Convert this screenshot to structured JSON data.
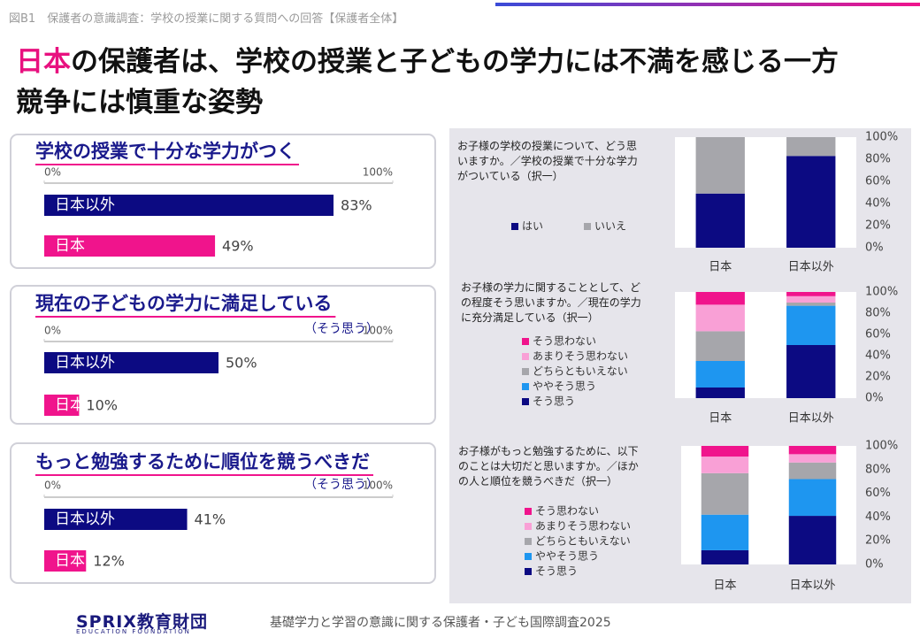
{
  "header": {
    "caption": "図B1　保護者の意識調査：学校の授業に関する質問への回答【保護者全体】",
    "title_highlight": "日本",
    "title_rest": "の保護者は、学校の授業と子どもの学力には不満を感じる一方",
    "title_line2": "競争には慎重な姿勢"
  },
  "chart_data": [
    {
      "type": "bar",
      "orientation": "horizontal",
      "title": "学校の授業で十分な学力がつく",
      "categories": [
        "日本以外",
        "日本"
      ],
      "values": [
        83,
        49
      ],
      "value_labels": [
        "83%",
        "49%"
      ],
      "colors": [
        "#0c0a82",
        "#f0148c"
      ],
      "xlim": [
        0,
        100
      ],
      "xticks": [
        {
          "value": 0,
          "label": "0%"
        },
        {
          "value": 100,
          "label": "100%"
        }
      ]
    },
    {
      "type": "bar",
      "orientation": "horizontal",
      "title": "現在の子どもの学力に満足している",
      "subtitle": "（そう思う）",
      "categories": [
        "日本以外",
        "日本"
      ],
      "values": [
        50,
        10
      ],
      "value_labels": [
        "50%",
        "10%"
      ],
      "colors": [
        "#0c0a82",
        "#f0148c"
      ],
      "xlim": [
        0,
        100
      ],
      "xticks": [
        {
          "value": 0,
          "label": "0%"
        },
        {
          "value": 100,
          "label": "100%"
        }
      ]
    },
    {
      "type": "bar",
      "orientation": "horizontal",
      "title": "もっと勉強するために順位を競うべきだ",
      "subtitle": "（そう思う）",
      "categories": [
        "日本以外",
        "日本"
      ],
      "values": [
        41,
        12
      ],
      "value_labels": [
        "41%",
        "12%"
      ],
      "colors": [
        "#0c0a82",
        "#f0148c"
      ],
      "xlim": [
        0,
        100
      ],
      "xticks": [
        {
          "value": 0,
          "label": "0%"
        },
        {
          "value": 100,
          "label": "100%"
        }
      ]
    },
    {
      "type": "stacked_bar",
      "title": "お子様の学校の授業について、どう思いますか。／学校の授業で十分な学力がついている（択一）",
      "categories": [
        "日本",
        "日本以外"
      ],
      "legend": "row",
      "series": [
        {
          "name": "はい",
          "color": "#0c0a82",
          "values": [
            49,
            83
          ]
        },
        {
          "name": "いいえ",
          "color": "#a6a6ab",
          "values": [
            51,
            17
          ]
        }
      ],
      "ylim": [
        0,
        100
      ],
      "yticks": [
        {
          "value": 0,
          "label": "0%"
        },
        {
          "value": 20,
          "label": "20%"
        },
        {
          "value": 40,
          "label": "40%"
        },
        {
          "value": 60,
          "label": "60%"
        },
        {
          "value": 80,
          "label": "80%"
        },
        {
          "value": 100,
          "label": "100%"
        }
      ]
    },
    {
      "type": "stacked_bar",
      "title": "お子様の学力に関することとして、どの程度そう思いますか。／現在の学力に充分満足している（択一）",
      "categories": [
        "日本",
        "日本以外"
      ],
      "legend": "column",
      "series": [
        {
          "name": "そう思う",
          "color": "#0c0a82",
          "values": [
            10,
            50
          ]
        },
        {
          "name": "ややそう思う",
          "color": "#1e96f0",
          "values": [
            25,
            37
          ]
        },
        {
          "name": "どちらともいえない",
          "color": "#a6a6ab",
          "values": [
            28,
            3
          ]
        },
        {
          "name": "あまりそう思わない",
          "color": "#f9a0d6",
          "values": [
            25,
            6
          ]
        },
        {
          "name": "そう思わない",
          "color": "#f0148c",
          "values": [
            12,
            4
          ]
        }
      ],
      "ylim": [
        0,
        100
      ],
      "yticks": [
        {
          "value": 0,
          "label": "0%"
        },
        {
          "value": 20,
          "label": "20%"
        },
        {
          "value": 40,
          "label": "40%"
        },
        {
          "value": 60,
          "label": "60%"
        },
        {
          "value": 80,
          "label": "80%"
        },
        {
          "value": 100,
          "label": "100%"
        }
      ]
    },
    {
      "type": "stacked_bar",
      "title": "お子様がもっと勉強するために、以下のことは大切だと思いますか。／ほかの人と順位を競うべきだ（択一）",
      "categories": [
        "日本",
        "日本以外"
      ],
      "legend": "column",
      "series": [
        {
          "name": "そう思う",
          "color": "#0c0a82",
          "values": [
            12,
            41
          ]
        },
        {
          "name": "ややそう思う",
          "color": "#1e96f0",
          "values": [
            30,
            31
          ]
        },
        {
          "name": "どちらともいえない",
          "color": "#a6a6ab",
          "values": [
            35,
            14
          ]
        },
        {
          "name": "あまりそう思わない",
          "color": "#f9a0d6",
          "values": [
            14,
            7
          ]
        },
        {
          "name": "そう思わない",
          "color": "#f0148c",
          "values": [
            9,
            7
          ]
        }
      ],
      "ylim": [
        0,
        100
      ],
      "yticks": [
        {
          "value": 0,
          "label": "0%"
        },
        {
          "value": 20,
          "label": "20%"
        },
        {
          "value": 40,
          "label": "40%"
        },
        {
          "value": 60,
          "label": "60%"
        },
        {
          "value": 80,
          "label": "80%"
        },
        {
          "value": 100,
          "label": "100%"
        }
      ]
    }
  ],
  "footer": {
    "logo": "SPRIX教育財団",
    "logo_sub": "EDUCATION FOUNDATION",
    "source": "基礎学力と学習の意識に関する保護者・子ども国際調査2025"
  }
}
